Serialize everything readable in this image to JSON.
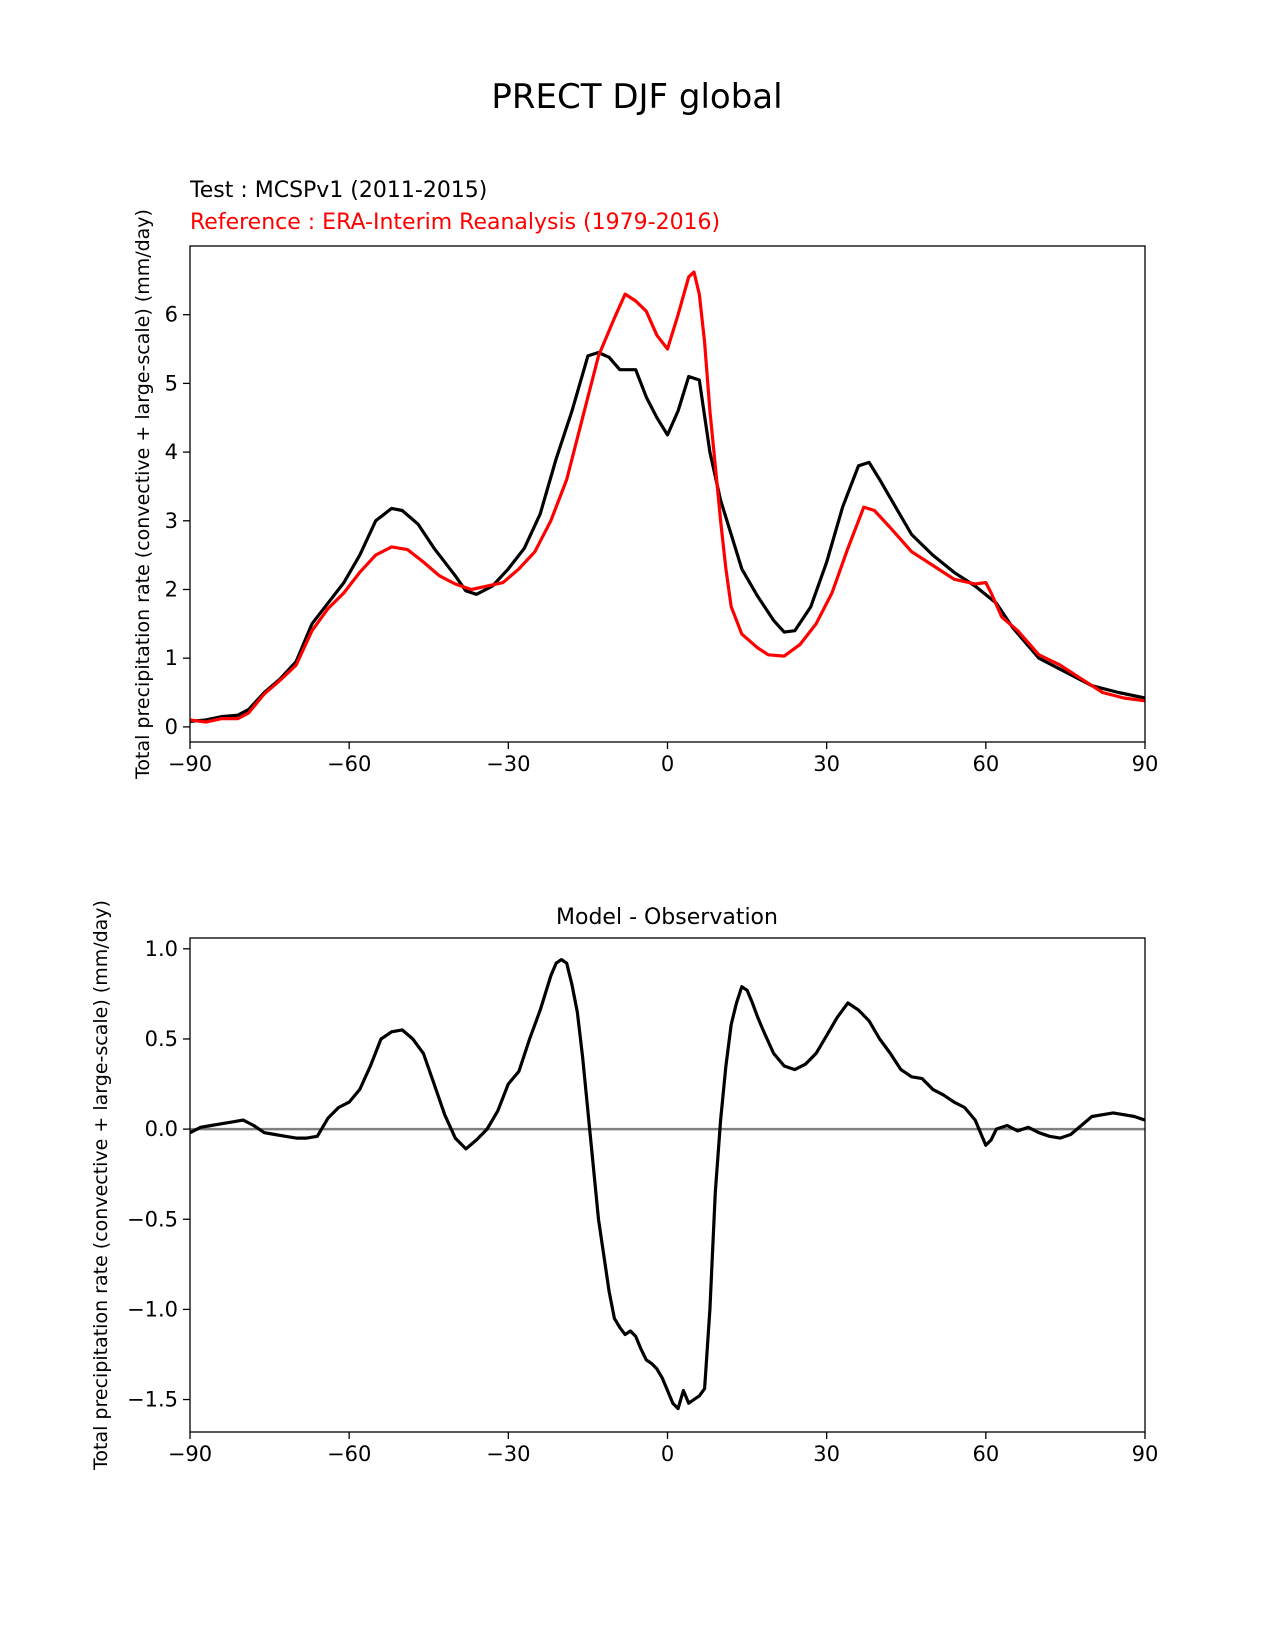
{
  "page": {
    "title": "PRECT DJF global"
  },
  "chart_data": [
    {
      "type": "line",
      "title": "",
      "test_label": "Test : MCSPv1 (2011-2015)",
      "reference_label": "Reference : ERA-Interim Reanalysis (1979-2016)",
      "xlabel": "",
      "ylabel": "Total precipitation rate (convective + large-scale) (mm/day)",
      "xlim": [
        -90,
        90
      ],
      "ylim": [
        -0.22,
        7.0
      ],
      "xticks": [
        "−90",
        "−60",
        "−30",
        "0",
        "30",
        "60",
        "90"
      ],
      "yticks": [
        "0",
        "1",
        "2",
        "3",
        "4",
        "5",
        "6"
      ],
      "grid": false,
      "colors": {
        "test": "#000000",
        "reference": "#ff0000"
      },
      "series": [
        {
          "name": "Test : MCSPv1 (2011-2015)",
          "color": "#000000",
          "points": [
            [
              -90,
              0.08
            ],
            [
              -87,
              0.1
            ],
            [
              -84,
              0.15
            ],
            [
              -81,
              0.17
            ],
            [
              -79,
              0.25
            ],
            [
              -76,
              0.5
            ],
            [
              -73,
              0.7
            ],
            [
              -70,
              0.95
            ],
            [
              -67,
              1.5
            ],
            [
              -64,
              1.8
            ],
            [
              -61,
              2.1
            ],
            [
              -58,
              2.5
            ],
            [
              -55,
              3.0
            ],
            [
              -52,
              3.18
            ],
            [
              -50,
              3.15
            ],
            [
              -47,
              2.95
            ],
            [
              -44,
              2.6
            ],
            [
              -40,
              2.2
            ],
            [
              -38,
              1.98
            ],
            [
              -36,
              1.93
            ],
            [
              -33,
              2.05
            ],
            [
              -30,
              2.3
            ],
            [
              -27,
              2.6
            ],
            [
              -24,
              3.1
            ],
            [
              -21,
              3.9
            ],
            [
              -18,
              4.6
            ],
            [
              -15,
              5.4
            ],
            [
              -13,
              5.45
            ],
            [
              -11,
              5.38
            ],
            [
              -9,
              5.2
            ],
            [
              -6,
              5.2
            ],
            [
              -4,
              4.8
            ],
            [
              -2,
              4.5
            ],
            [
              0,
              4.25
            ],
            [
              2,
              4.6
            ],
            [
              4,
              5.1
            ],
            [
              6,
              5.05
            ],
            [
              8,
              4.0
            ],
            [
              10,
              3.3
            ],
            [
              12,
              2.8
            ],
            [
              14,
              2.3
            ],
            [
              17,
              1.9
            ],
            [
              20,
              1.55
            ],
            [
              22,
              1.38
            ],
            [
              24,
              1.4
            ],
            [
              27,
              1.75
            ],
            [
              30,
              2.4
            ],
            [
              33,
              3.2
            ],
            [
              36,
              3.8
            ],
            [
              38,
              3.85
            ],
            [
              40,
              3.6
            ],
            [
              43,
              3.2
            ],
            [
              46,
              2.8
            ],
            [
              50,
              2.5
            ],
            [
              54,
              2.25
            ],
            [
              58,
              2.05
            ],
            [
              62,
              1.8
            ],
            [
              65,
              1.45
            ],
            [
              70,
              1.0
            ],
            [
              75,
              0.8
            ],
            [
              80,
              0.6
            ],
            [
              85,
              0.5
            ],
            [
              90,
              0.42
            ]
          ]
        },
        {
          "name": "Reference : ERA-Interim Reanalysis (1979-2016)",
          "color": "#ff0000",
          "points": [
            [
              -90,
              0.1
            ],
            [
              -87,
              0.07
            ],
            [
              -84,
              0.12
            ],
            [
              -81,
              0.12
            ],
            [
              -79,
              0.2
            ],
            [
              -76,
              0.48
            ],
            [
              -73,
              0.68
            ],
            [
              -70,
              0.9
            ],
            [
              -67,
              1.4
            ],
            [
              -64,
              1.72
            ],
            [
              -61,
              1.95
            ],
            [
              -58,
              2.25
            ],
            [
              -55,
              2.5
            ],
            [
              -52,
              2.62
            ],
            [
              -49,
              2.58
            ],
            [
              -46,
              2.4
            ],
            [
              -43,
              2.2
            ],
            [
              -40,
              2.08
            ],
            [
              -37,
              2.0
            ],
            [
              -34,
              2.05
            ],
            [
              -31,
              2.1
            ],
            [
              -28,
              2.3
            ],
            [
              -25,
              2.55
            ],
            [
              -22,
              3.0
            ],
            [
              -19,
              3.6
            ],
            [
              -16,
              4.5
            ],
            [
              -13,
              5.4
            ],
            [
              -10,
              5.95
            ],
            [
              -8,
              6.3
            ],
            [
              -6,
              6.2
            ],
            [
              -4,
              6.05
            ],
            [
              -2,
              5.7
            ],
            [
              0,
              5.5
            ],
            [
              2,
              6.0
            ],
            [
              4,
              6.55
            ],
            [
              5,
              6.62
            ],
            [
              6,
              6.3
            ],
            [
              7,
              5.6
            ],
            [
              8,
              4.6
            ],
            [
              9,
              3.8
            ],
            [
              10,
              3.0
            ],
            [
              11,
              2.3
            ],
            [
              12,
              1.75
            ],
            [
              14,
              1.35
            ],
            [
              17,
              1.15
            ],
            [
              19,
              1.05
            ],
            [
              22,
              1.03
            ],
            [
              25,
              1.2
            ],
            [
              28,
              1.5
            ],
            [
              31,
              1.95
            ],
            [
              34,
              2.6
            ],
            [
              37,
              3.2
            ],
            [
              39,
              3.15
            ],
            [
              42,
              2.9
            ],
            [
              46,
              2.55
            ],
            [
              50,
              2.35
            ],
            [
              54,
              2.15
            ],
            [
              58,
              2.08
            ],
            [
              60,
              2.1
            ],
            [
              61,
              1.95
            ],
            [
              63,
              1.6
            ],
            [
              66,
              1.4
            ],
            [
              70,
              1.05
            ],
            [
              74,
              0.9
            ],
            [
              78,
              0.7
            ],
            [
              82,
              0.5
            ],
            [
              86,
              0.42
            ],
            [
              90,
              0.38
            ]
          ]
        }
      ]
    },
    {
      "type": "line",
      "title": "Model - Observation",
      "xlabel": "",
      "ylabel": "Total precipitation rate (convective + large-scale) (mm/day)",
      "xlim": [
        -90,
        90
      ],
      "ylim": [
        -1.68,
        1.06
      ],
      "xticks": [
        "−90",
        "−60",
        "−30",
        "0",
        "30",
        "60",
        "90"
      ],
      "yticks": [
        "1.0",
        "0.5",
        "0.0",
        "−0.5",
        "−1.0",
        "−1.5"
      ],
      "grid": false,
      "zero_line": {
        "y": 0,
        "color": "#808080"
      },
      "series": [
        {
          "color": "#000000",
          "points": [
            [
              -90,
              -0.02
            ],
            [
              -88,
              0.01
            ],
            [
              -86,
              0.02
            ],
            [
              -84,
              0.03
            ],
            [
              -82,
              0.04
            ],
            [
              -80,
              0.05
            ],
            [
              -78,
              0.02
            ],
            [
              -76,
              -0.02
            ],
            [
              -74,
              -0.03
            ],
            [
              -72,
              -0.04
            ],
            [
              -70,
              -0.05
            ],
            [
              -68,
              -0.05
            ],
            [
              -66,
              -0.04
            ],
            [
              -64,
              0.06
            ],
            [
              -62,
              0.12
            ],
            [
              -60,
              0.15
            ],
            [
              -58,
              0.22
            ],
            [
              -56,
              0.35
            ],
            [
              -54,
              0.5
            ],
            [
              -52,
              0.54
            ],
            [
              -50,
              0.55
            ],
            [
              -48,
              0.5
            ],
            [
              -46,
              0.42
            ],
            [
              -44,
              0.25
            ],
            [
              -42,
              0.08
            ],
            [
              -40,
              -0.05
            ],
            [
              -38,
              -0.11
            ],
            [
              -36,
              -0.06
            ],
            [
              -34,
              0.0
            ],
            [
              -32,
              0.1
            ],
            [
              -30,
              0.25
            ],
            [
              -28,
              0.32
            ],
            [
              -26,
              0.5
            ],
            [
              -24,
              0.66
            ],
            [
              -22,
              0.85
            ],
            [
              -21,
              0.92
            ],
            [
              -20,
              0.94
            ],
            [
              -19,
              0.92
            ],
            [
              -18,
              0.8
            ],
            [
              -17,
              0.65
            ],
            [
              -16,
              0.4
            ],
            [
              -15,
              0.1
            ],
            [
              -14,
              -0.2
            ],
            [
              -13,
              -0.5
            ],
            [
              -12,
              -0.7
            ],
            [
              -11,
              -0.9
            ],
            [
              -10,
              -1.05
            ],
            [
              -9,
              -1.1
            ],
            [
              -8,
              -1.14
            ],
            [
              -7,
              -1.12
            ],
            [
              -6,
              -1.15
            ],
            [
              -5,
              -1.22
            ],
            [
              -4,
              -1.28
            ],
            [
              -3,
              -1.3
            ],
            [
              -2,
              -1.33
            ],
            [
              -1,
              -1.38
            ],
            [
              0,
              -1.45
            ],
            [
              1,
              -1.52
            ],
            [
              2,
              -1.55
            ],
            [
              3,
              -1.45
            ],
            [
              4,
              -1.52
            ],
            [
              5,
              -1.5
            ],
            [
              6,
              -1.48
            ],
            [
              7,
              -1.44
            ],
            [
              8,
              -1.0
            ],
            [
              9,
              -0.35
            ],
            [
              10,
              0.05
            ],
            [
              11,
              0.35
            ],
            [
              12,
              0.58
            ],
            [
              13,
              0.7
            ],
            [
              14,
              0.79
            ],
            [
              15,
              0.77
            ],
            [
              16,
              0.7
            ],
            [
              17,
              0.62
            ],
            [
              18,
              0.55
            ],
            [
              20,
              0.42
            ],
            [
              22,
              0.35
            ],
            [
              24,
              0.33
            ],
            [
              26,
              0.36
            ],
            [
              28,
              0.42
            ],
            [
              30,
              0.52
            ],
            [
              32,
              0.62
            ],
            [
              34,
              0.7
            ],
            [
              36,
              0.66
            ],
            [
              38,
              0.6
            ],
            [
              40,
              0.5
            ],
            [
              42,
              0.42
            ],
            [
              44,
              0.33
            ],
            [
              46,
              0.29
            ],
            [
              48,
              0.28
            ],
            [
              50,
              0.22
            ],
            [
              52,
              0.19
            ],
            [
              54,
              0.15
            ],
            [
              56,
              0.12
            ],
            [
              58,
              0.05
            ],
            [
              59,
              -0.02
            ],
            [
              60,
              -0.09
            ],
            [
              61,
              -0.06
            ],
            [
              62,
              0.0
            ],
            [
              64,
              0.02
            ],
            [
              66,
              -0.01
            ],
            [
              68,
              0.01
            ],
            [
              70,
              -0.02
            ],
            [
              72,
              -0.04
            ],
            [
              74,
              -0.05
            ],
            [
              76,
              -0.03
            ],
            [
              78,
              0.02
            ],
            [
              80,
              0.07
            ],
            [
              82,
              0.08
            ],
            [
              84,
              0.09
            ],
            [
              86,
              0.08
            ],
            [
              88,
              0.07
            ],
            [
              90,
              0.05
            ]
          ]
        }
      ]
    }
  ]
}
